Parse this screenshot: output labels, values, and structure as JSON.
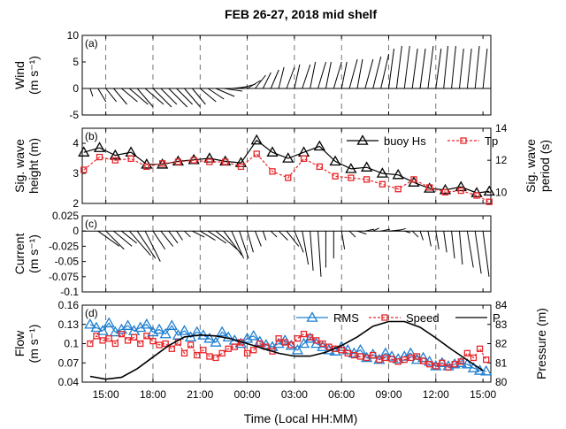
{
  "title": "FEB 26-27, 2018 mid shelf",
  "xlabel": "Time (Local HH:MM)",
  "time_ticks": [
    "15:00",
    "18:00",
    "21:00",
    "00:00",
    "03:00",
    "06:00",
    "09:00",
    "12:00",
    "15:00"
  ],
  "time_tick_hours": [
    15,
    18,
    21,
    24,
    27,
    30,
    33,
    36,
    39
  ],
  "dashed_hours": [
    15,
    18,
    21,
    24,
    27,
    30,
    33,
    36
  ],
  "chart_data": [
    {
      "panel": "(a)",
      "type": "vector",
      "ylabel": [
        "Wind",
        "(m s⁻¹)"
      ],
      "ylim": [
        -5,
        10
      ],
      "yticks": [
        -5,
        0,
        5,
        10
      ],
      "xlim_hours": [
        13.5,
        39.5
      ],
      "grid": false,
      "vectors": [
        {
          "t": 14.0,
          "u": 0.5,
          "v": -1.5
        },
        {
          "t": 14.5,
          "u": 1.5,
          "v": -2.5
        },
        {
          "t": 15.0,
          "u": 2.0,
          "v": -2.5
        },
        {
          "t": 15.5,
          "u": 2.5,
          "v": -3.0
        },
        {
          "t": 16.0,
          "u": 3.0,
          "v": -2.5
        },
        {
          "t": 16.5,
          "u": 3.5,
          "v": -3.0
        },
        {
          "t": 17.0,
          "u": 3.0,
          "v": -3.5
        },
        {
          "t": 17.5,
          "u": 3.5,
          "v": -3.0
        },
        {
          "t": 18.0,
          "u": 3.5,
          "v": -3.5
        },
        {
          "t": 18.5,
          "u": 3.0,
          "v": -3.0
        },
        {
          "t": 19.0,
          "u": 3.5,
          "v": -3.5
        },
        {
          "t": 19.5,
          "u": 3.0,
          "v": -3.0
        },
        {
          "t": 20.0,
          "u": 3.0,
          "v": -3.5
        },
        {
          "t": 20.5,
          "u": 2.5,
          "v": -3.0
        },
        {
          "t": 21.0,
          "u": 3.0,
          "v": -2.5
        },
        {
          "t": 21.5,
          "u": 3.0,
          "v": -2.0
        },
        {
          "t": 22.0,
          "u": 3.5,
          "v": -1.5
        },
        {
          "t": 22.5,
          "u": 3.5,
          "v": -0.5
        },
        {
          "t": 23.0,
          "u": 3.0,
          "v": 0.3
        },
        {
          "t": 23.5,
          "u": 3.0,
          "v": 0.8
        },
        {
          "t": 24.0,
          "u": 2.5,
          "v": 1.5
        },
        {
          "t": 24.5,
          "u": 2.0,
          "v": 2.5
        },
        {
          "t": 25.0,
          "u": 1.5,
          "v": 3.0
        },
        {
          "t": 25.5,
          "u": 1.5,
          "v": 3.5
        },
        {
          "t": 26.0,
          "u": 1.0,
          "v": 4.0
        },
        {
          "t": 26.5,
          "u": 1.5,
          "v": 4.0
        },
        {
          "t": 27.0,
          "u": 1.0,
          "v": 4.5
        },
        {
          "t": 27.5,
          "u": 1.5,
          "v": 4.5
        },
        {
          "t": 28.0,
          "u": 1.0,
          "v": 5.0
        },
        {
          "t": 28.5,
          "u": 1.5,
          "v": 5.0
        },
        {
          "t": 29.0,
          "u": 1.0,
          "v": 5.0
        },
        {
          "t": 29.5,
          "u": 1.5,
          "v": 5.0
        },
        {
          "t": 30.0,
          "u": 1.0,
          "v": 5.0
        },
        {
          "t": 30.5,
          "u": 1.5,
          "v": 5.5
        },
        {
          "t": 31.0,
          "u": 1.0,
          "v": 5.5
        },
        {
          "t": 31.5,
          "u": 1.5,
          "v": 5.5
        },
        {
          "t": 32.0,
          "u": 1.5,
          "v": 6.0
        },
        {
          "t": 32.5,
          "u": 1.5,
          "v": 6.5
        },
        {
          "t": 33.0,
          "u": 1.0,
          "v": 7.5
        },
        {
          "t": 33.5,
          "u": 1.0,
          "v": 8.0
        },
        {
          "t": 34.0,
          "u": 1.0,
          "v": 8.0
        },
        {
          "t": 34.5,
          "u": 1.0,
          "v": 7.5
        },
        {
          "t": 35.0,
          "u": 1.0,
          "v": 7.5
        },
        {
          "t": 35.5,
          "u": 1.0,
          "v": 8.0
        },
        {
          "t": 36.0,
          "u": 1.0,
          "v": 7.5
        },
        {
          "t": 36.5,
          "u": 0.8,
          "v": 8.0
        },
        {
          "t": 37.0,
          "u": 0.8,
          "v": 8.0
        },
        {
          "t": 37.5,
          "u": 0.8,
          "v": 7.5
        },
        {
          "t": 38.0,
          "u": 0.8,
          "v": 7.5
        },
        {
          "t": 38.5,
          "u": 0.8,
          "v": 8.0
        },
        {
          "t": 39.0,
          "u": 0.8,
          "v": 7.5
        }
      ]
    },
    {
      "panel": "(b)",
      "type": "line",
      "ylabel": [
        "Sig. wave",
        "height (m)"
      ],
      "y2label": [
        "Sig. wave",
        "period (s)"
      ],
      "ylim": [
        2,
        4.5
      ],
      "yticks": [
        2,
        3,
        4
      ],
      "y2lim": [
        9.3,
        14
      ],
      "y2ticks": [
        10,
        12,
        14
      ],
      "xlim_hours": [
        13.5,
        39.5
      ],
      "legend_position": "top-right",
      "series": [
        {
          "name": "buoy Hs",
          "axis": "left",
          "color": "#000000",
          "marker": "triangle",
          "x": [
            13.6,
            14.6,
            15.6,
            16.6,
            17.6,
            18.6,
            19.6,
            20.6,
            21.6,
            22.6,
            23.6,
            24.6,
            25.6,
            26.6,
            27.6,
            28.6,
            29.6,
            30.6,
            31.6,
            32.6,
            33.6,
            34.6,
            35.6,
            36.6,
            37.6,
            38.6,
            39.4
          ],
          "y": [
            3.7,
            3.85,
            3.6,
            3.7,
            3.3,
            3.3,
            3.4,
            3.45,
            3.5,
            3.4,
            3.35,
            4.1,
            3.7,
            3.5,
            3.7,
            3.9,
            3.4,
            3.15,
            3.2,
            3.0,
            2.95,
            2.7,
            2.5,
            2.45,
            2.55,
            2.35,
            2.4
          ]
        },
        {
          "name": "Tp",
          "axis": "right",
          "color": "#e8262a",
          "marker": "square",
          "x": [
            13.6,
            14.6,
            15.6,
            16.6,
            17.6,
            18.6,
            19.6,
            20.6,
            21.6,
            22.6,
            23.6,
            24.6,
            25.6,
            26.6,
            27.6,
            28.6,
            29.6,
            30.6,
            31.6,
            32.6,
            33.6,
            34.6,
            35.6,
            36.6,
            37.6,
            38.6,
            39.4
          ],
          "y": [
            11.4,
            12.2,
            12.0,
            12.1,
            11.6,
            11.8,
            11.9,
            12.0,
            11.9,
            11.9,
            11.6,
            12.4,
            11.3,
            10.9,
            12.1,
            11.6,
            11.0,
            10.9,
            10.8,
            10.5,
            10.2,
            10.8,
            10.3,
            10.0,
            10.1,
            9.8,
            9.4
          ]
        }
      ]
    },
    {
      "panel": "(c)",
      "type": "vector",
      "ylabel": [
        "Current",
        "(m s⁻¹)"
      ],
      "ylim": [
        -0.1,
        0.025
      ],
      "yticks": [
        -0.1,
        -0.075,
        -0.05,
        -0.025,
        0,
        0.025
      ],
      "ytick_labels": [
        "-0.1",
        "-0.075",
        "-0.05",
        "-0.025",
        "0",
        "0.025"
      ],
      "xlim_hours": [
        13.5,
        39.5
      ],
      "vectors": [
        {
          "t": 14.5,
          "u": 0.035,
          "v": -0.025
        },
        {
          "t": 15.0,
          "u": 0.03,
          "v": -0.03
        },
        {
          "t": 15.5,
          "u": 0.03,
          "v": -0.025
        },
        {
          "t": 16.0,
          "u": 0.025,
          "v": -0.02
        },
        {
          "t": 16.5,
          "u": 0.035,
          "v": -0.04
        },
        {
          "t": 17.0,
          "u": 0.03,
          "v": -0.045
        },
        {
          "t": 17.5,
          "u": 0.025,
          "v": -0.05
        },
        {
          "t": 18.0,
          "u": 0.02,
          "v": -0.03
        },
        {
          "t": 18.5,
          "u": 0.02,
          "v": -0.025
        },
        {
          "t": 19.0,
          "u": 0.015,
          "v": -0.02
        },
        {
          "t": 19.5,
          "u": 0.01,
          "v": -0.015
        },
        {
          "t": 20.0,
          "u": 0.01,
          "v": -0.01
        },
        {
          "t": 20.5,
          "u": 0.02,
          "v": -0.01
        },
        {
          "t": 21.0,
          "u": 0.025,
          "v": -0.015
        },
        {
          "t": 21.5,
          "u": 0.03,
          "v": -0.02
        },
        {
          "t": 22.0,
          "u": 0.035,
          "v": -0.03
        },
        {
          "t": 22.5,
          "u": 0.03,
          "v": -0.04
        },
        {
          "t": 23.0,
          "u": 0.02,
          "v": -0.045
        },
        {
          "t": 23.5,
          "u": 0.015,
          "v": -0.045
        },
        {
          "t": 24.0,
          "u": 0.01,
          "v": -0.035
        },
        {
          "t": 24.5,
          "u": 0.01,
          "v": -0.025
        },
        {
          "t": 25.0,
          "u": 0.005,
          "v": -0.015
        },
        {
          "t": 25.5,
          "u": 0.01,
          "v": -0.01
        },
        {
          "t": 26.0,
          "u": 0.015,
          "v": -0.015
        },
        {
          "t": 26.5,
          "u": 0.02,
          "v": -0.025
        },
        {
          "t": 27.0,
          "u": 0.015,
          "v": -0.035
        },
        {
          "t": 27.5,
          "u": 0.01,
          "v": -0.055
        },
        {
          "t": 28.0,
          "u": 0.005,
          "v": -0.065
        },
        {
          "t": 28.5,
          "u": 0.005,
          "v": -0.075
        },
        {
          "t": 29.0,
          "u": 0.0,
          "v": -0.06
        },
        {
          "t": 29.5,
          "u": 0.0,
          "v": -0.045
        },
        {
          "t": 30.0,
          "u": 0.005,
          "v": -0.03
        },
        {
          "t": 30.5,
          "u": 0.01,
          "v": -0.01
        },
        {
          "t": 31.0,
          "u": 0.015,
          "v": -0.005
        },
        {
          "t": 31.5,
          "u": 0.015,
          "v": 0.003
        },
        {
          "t": 32.0,
          "u": 0.01,
          "v": 0.005
        },
        {
          "t": 32.5,
          "u": 0.015,
          "v": 0.003
        },
        {
          "t": 33.0,
          "u": 0.02,
          "v": 0.002
        },
        {
          "t": 33.5,
          "u": 0.015,
          "v": 0.004
        },
        {
          "t": 34.0,
          "u": 0.01,
          "v": -0.003
        },
        {
          "t": 34.5,
          "u": 0.01,
          "v": -0.01
        },
        {
          "t": 35.0,
          "u": 0.005,
          "v": -0.015
        },
        {
          "t": 35.5,
          "u": 0.005,
          "v": -0.025
        },
        {
          "t": 36.0,
          "u": 0.005,
          "v": -0.03
        },
        {
          "t": 36.5,
          "u": 0.005,
          "v": -0.035
        },
        {
          "t": 37.0,
          "u": 0.005,
          "v": -0.045
        },
        {
          "t": 37.5,
          "u": 0.005,
          "v": -0.055
        },
        {
          "t": 38.0,
          "u": 0.01,
          "v": -0.06
        },
        {
          "t": 38.5,
          "u": 0.01,
          "v": -0.07
        },
        {
          "t": 39.0,
          "u": 0.01,
          "v": -0.075
        }
      ]
    },
    {
      "panel": "(d)",
      "type": "line",
      "ylabel": [
        "Flow",
        "(m s⁻¹)"
      ],
      "y2label": [
        "Pressure (m)"
      ],
      "ylim": [
        0.04,
        0.16
      ],
      "yticks": [
        0.04,
        0.07,
        0.1,
        0.13,
        0.16
      ],
      "y2lim": [
        80,
        84
      ],
      "y2ticks": [
        80,
        81,
        82,
        83,
        84
      ],
      "xlim_hours": [
        13.5,
        39.5
      ],
      "legend_position": "top-right",
      "series": [
        {
          "name": "RMS",
          "axis": "left",
          "color": "#1f7fd0",
          "marker": "triangle",
          "x": [
            14.0,
            14.4,
            14.8,
            15.2,
            15.6,
            16.0,
            16.4,
            16.8,
            17.2,
            17.6,
            18.0,
            18.4,
            18.8,
            19.2,
            19.6,
            20.0,
            20.4,
            20.8,
            21.2,
            21.6,
            22.0,
            22.4,
            22.8,
            23.2,
            23.6,
            24.0,
            24.4,
            24.8,
            25.2,
            25.6,
            26.0,
            26.4,
            26.8,
            27.2,
            27.6,
            28.0,
            28.4,
            28.8,
            29.2,
            29.6,
            30.0,
            30.4,
            30.8,
            31.2,
            31.6,
            32.0,
            32.4,
            32.8,
            33.2,
            33.6,
            34.0,
            34.4,
            34.8,
            35.2,
            35.6,
            36.0,
            36.4,
            36.8,
            37.2,
            37.6,
            38.0,
            38.4,
            38.8,
            39.2
          ],
          "y": [
            0.13,
            0.125,
            0.12,
            0.132,
            0.118,
            0.122,
            0.128,
            0.12,
            0.125,
            0.13,
            0.118,
            0.122,
            0.115,
            0.128,
            0.113,
            0.12,
            0.11,
            0.118,
            0.113,
            0.108,
            0.102,
            0.118,
            0.11,
            0.105,
            0.1,
            0.108,
            0.112,
            0.103,
            0.098,
            0.095,
            0.1,
            0.105,
            0.097,
            0.09,
            0.1,
            0.108,
            0.1,
            0.095,
            0.09,
            0.088,
            0.095,
            0.09,
            0.085,
            0.09,
            0.078,
            0.083,
            0.075,
            0.085,
            0.08,
            0.076,
            0.08,
            0.085,
            0.075,
            0.078,
            0.072,
            0.065,
            0.07,
            0.065,
            0.068,
            0.07,
            0.068,
            0.062,
            0.058,
            0.057
          ]
        },
        {
          "name": "Speed",
          "axis": "left",
          "color": "#e8262a",
          "marker": "square",
          "x": [
            14.0,
            14.4,
            14.8,
            15.2,
            15.6,
            16.0,
            16.4,
            16.8,
            17.2,
            17.6,
            18.0,
            18.4,
            18.8,
            19.2,
            19.6,
            20.0,
            20.4,
            20.8,
            21.2,
            21.6,
            22.0,
            22.4,
            22.8,
            23.2,
            23.6,
            24.0,
            24.4,
            24.8,
            25.2,
            25.6,
            26.0,
            26.4,
            26.8,
            27.2,
            27.6,
            28.0,
            28.4,
            28.8,
            29.2,
            29.6,
            30.0,
            30.4,
            30.8,
            31.2,
            31.6,
            32.0,
            32.4,
            32.8,
            33.2,
            33.6,
            34.0,
            34.4,
            34.8,
            35.2,
            35.6,
            36.0,
            36.4,
            36.8,
            37.2,
            37.6,
            38.0,
            38.4,
            38.8,
            39.2
          ],
          "y": [
            0.1,
            0.112,
            0.105,
            0.108,
            0.1,
            0.115,
            0.105,
            0.11,
            0.1,
            0.112,
            0.104,
            0.098,
            0.1,
            0.092,
            0.102,
            0.085,
            0.098,
            0.082,
            0.09,
            0.08,
            0.078,
            0.085,
            0.092,
            0.095,
            0.102,
            0.085,
            0.09,
            0.1,
            0.095,
            0.088,
            0.108,
            0.102,
            0.098,
            0.108,
            0.115,
            0.11,
            0.105,
            0.1,
            0.095,
            0.092,
            0.09,
            0.085,
            0.082,
            0.08,
            0.078,
            0.082,
            0.075,
            0.078,
            0.076,
            0.072,
            0.075,
            0.078,
            0.08,
            0.073,
            0.068,
            0.065,
            0.07,
            0.063,
            0.068,
            0.072,
            0.085,
            0.078,
            0.092,
            0.075
          ]
        },
        {
          "name": "P",
          "axis": "right",
          "color": "#000000",
          "marker": "none",
          "x": [
            14.0,
            15.0,
            16.0,
            17.0,
            18.0,
            19.0,
            20.0,
            21.0,
            22.0,
            23.0,
            24.0,
            25.0,
            26.0,
            27.0,
            28.0,
            29.0,
            30.0,
            31.0,
            32.0,
            33.0,
            34.0,
            35.0,
            36.0,
            37.0,
            38.0,
            39.0
          ],
          "y": [
            80.3,
            80.15,
            80.25,
            80.7,
            81.3,
            81.9,
            82.35,
            82.45,
            82.4,
            82.25,
            82.0,
            81.75,
            81.5,
            81.35,
            81.35,
            81.55,
            81.9,
            82.35,
            82.9,
            83.15,
            83.15,
            82.85,
            82.3,
            81.7,
            81.15,
            80.6
          ]
        }
      ]
    }
  ]
}
